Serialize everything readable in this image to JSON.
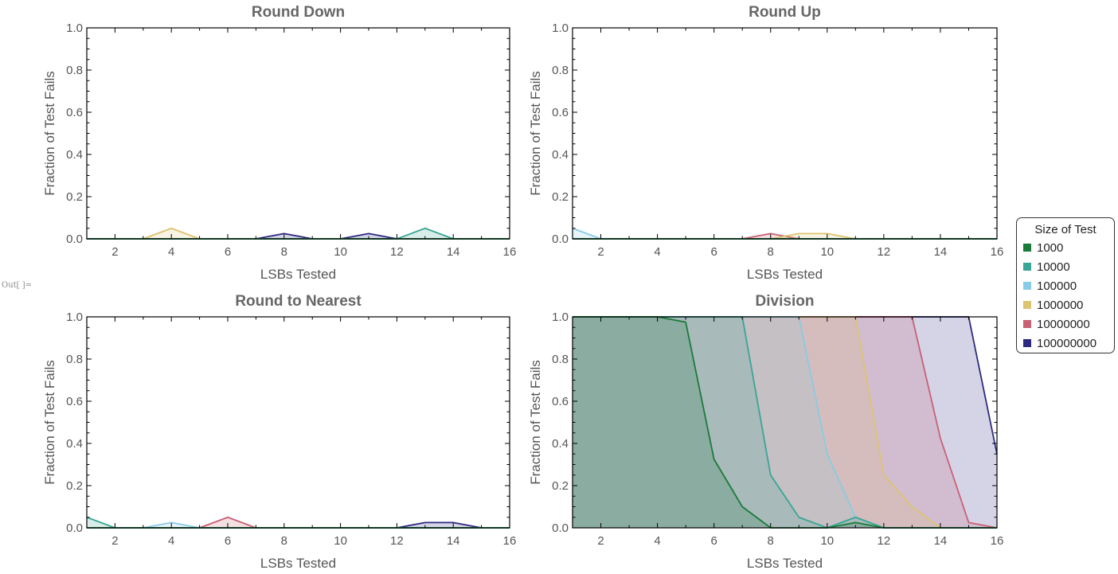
{
  "out_label": "Out[ ]=",
  "legend": {
    "title": "Size of Test",
    "items": [
      {
        "label": "1000",
        "color": "#1a7a3a"
      },
      {
        "label": "10000",
        "color": "#3aa594"
      },
      {
        "label": "100000",
        "color": "#89cbe6"
      },
      {
        "label": "1000000",
        "color": "#dcc472"
      },
      {
        "label": "10000000",
        "color": "#c86174"
      },
      {
        "label": "100000000",
        "color": "#2c2a80"
      }
    ]
  },
  "chart_data": [
    {
      "type": "area",
      "title": "Round Down",
      "xlabel": "LSBs Tested",
      "ylabel": "Fraction of Test Fails",
      "x": [
        1,
        2,
        3,
        4,
        5,
        6,
        7,
        8,
        9,
        10,
        11,
        12,
        13,
        14,
        15,
        16
      ],
      "xlim": [
        1,
        16
      ],
      "ylim": [
        0,
        1
      ],
      "xticks": [
        "2",
        "4",
        "6",
        "8",
        "10",
        "12",
        "14",
        "16"
      ],
      "yticks": [
        "0.0",
        "0.2",
        "0.4",
        "0.6",
        "0.8",
        "1.0"
      ],
      "series": [
        {
          "name": "1000",
          "values": [
            0,
            0,
            0,
            0,
            0,
            0,
            0,
            0,
            0,
            0,
            0,
            0,
            0,
            0,
            0,
            0
          ]
        },
        {
          "name": "10000",
          "values": [
            0,
            0,
            0,
            0,
            0,
            0,
            0,
            0,
            0,
            0,
            0,
            0,
            0.05,
            0,
            0,
            0
          ]
        },
        {
          "name": "100000",
          "values": [
            0,
            0,
            0,
            0,
            0,
            0,
            0,
            0,
            0,
            0,
            0,
            0,
            0,
            0,
            0,
            0
          ]
        },
        {
          "name": "1000000",
          "values": [
            0,
            0,
            0,
            0.05,
            0,
            0,
            0,
            0,
            0,
            0,
            0,
            0,
            0,
            0,
            0,
            0
          ]
        },
        {
          "name": "10000000",
          "values": [
            0,
            0,
            0,
            0,
            0,
            0,
            0,
            0,
            0,
            0,
            0,
            0,
            0,
            0,
            0,
            0
          ]
        },
        {
          "name": "100000000",
          "values": [
            0,
            0,
            0,
            0,
            0,
            0,
            0,
            0.025,
            0,
            0,
            0.025,
            0,
            0,
            0,
            0,
            0
          ]
        }
      ]
    },
    {
      "type": "area",
      "title": "Round Up",
      "xlabel": "LSBs Tested",
      "ylabel": "Fraction of Test Fails",
      "x": [
        1,
        2,
        3,
        4,
        5,
        6,
        7,
        8,
        9,
        10,
        11,
        12,
        13,
        14,
        15,
        16
      ],
      "xlim": [
        1,
        16
      ],
      "ylim": [
        0,
        1
      ],
      "xticks": [
        "2",
        "4",
        "6",
        "8",
        "10",
        "12",
        "14",
        "16"
      ],
      "yticks": [
        "0.0",
        "0.2",
        "0.4",
        "0.6",
        "0.8",
        "1.0"
      ],
      "series": [
        {
          "name": "1000",
          "values": [
            0,
            0,
            0,
            0,
            0,
            0,
            0,
            0,
            0,
            0,
            0,
            0,
            0,
            0,
            0,
            0
          ]
        },
        {
          "name": "10000",
          "values": [
            0,
            0,
            0,
            0,
            0,
            0,
            0,
            0,
            0,
            0,
            0,
            0,
            0,
            0,
            0,
            0
          ]
        },
        {
          "name": "100000",
          "values": [
            0.05,
            0,
            0,
            0,
            0,
            0,
            0,
            0,
            0,
            0,
            0,
            0,
            0,
            0,
            0,
            0
          ]
        },
        {
          "name": "1000000",
          "values": [
            0,
            0,
            0,
            0,
            0,
            0,
            0,
            0,
            0.025,
            0.025,
            0,
            0,
            0,
            0,
            0,
            0
          ]
        },
        {
          "name": "10000000",
          "values": [
            0,
            0,
            0,
            0,
            0,
            0,
            0,
            0.025,
            0,
            0,
            0,
            0,
            0,
            0,
            0,
            0
          ]
        },
        {
          "name": "100000000",
          "values": [
            0,
            0,
            0,
            0,
            0,
            0,
            0,
            0,
            0,
            0,
            0,
            0,
            0,
            0,
            0,
            0
          ]
        }
      ]
    },
    {
      "type": "area",
      "title": "Round to Nearest",
      "xlabel": "LSBs Tested",
      "ylabel": "Fraction of Test Fails",
      "x": [
        1,
        2,
        3,
        4,
        5,
        6,
        7,
        8,
        9,
        10,
        11,
        12,
        13,
        14,
        15,
        16
      ],
      "xlim": [
        1,
        16
      ],
      "ylim": [
        0,
        1
      ],
      "xticks": [
        "2",
        "4",
        "6",
        "8",
        "10",
        "12",
        "14",
        "16"
      ],
      "yticks": [
        "0.0",
        "0.2",
        "0.4",
        "0.6",
        "0.8",
        "1.0"
      ],
      "series": [
        {
          "name": "1000",
          "values": [
            0,
            0,
            0,
            0,
            0,
            0,
            0,
            0,
            0,
            0,
            0,
            0,
            0,
            0,
            0,
            0
          ]
        },
        {
          "name": "10000",
          "values": [
            0.05,
            0,
            0,
            0,
            0,
            0,
            0,
            0,
            0,
            0,
            0,
            0,
            0,
            0,
            0,
            0
          ]
        },
        {
          "name": "100000",
          "values": [
            0,
            0,
            0,
            0.025,
            0,
            0,
            0,
            0,
            0,
            0,
            0,
            0,
            0,
            0,
            0,
            0
          ]
        },
        {
          "name": "1000000",
          "values": [
            0,
            0,
            0,
            0,
            0,
            0,
            0,
            0,
            0,
            0,
            0,
            0,
            0,
            0,
            0,
            0
          ]
        },
        {
          "name": "10000000",
          "values": [
            0,
            0,
            0,
            0,
            0,
            0.05,
            0,
            0,
            0,
            0,
            0,
            0,
            0,
            0,
            0,
            0
          ]
        },
        {
          "name": "100000000",
          "values": [
            0,
            0,
            0,
            0,
            0,
            0,
            0,
            0,
            0,
            0,
            0,
            0,
            0.025,
            0.025,
            0,
            0
          ]
        }
      ]
    },
    {
      "type": "area",
      "title": "Division",
      "xlabel": "LSBs Tested",
      "ylabel": "Fraction of Test Fails",
      "x": [
        1,
        2,
        3,
        4,
        5,
        6,
        7,
        8,
        9,
        10,
        11,
        12,
        13,
        14,
        15,
        16
      ],
      "xlim": [
        1,
        16
      ],
      "ylim": [
        0,
        1
      ],
      "xticks": [
        "2",
        "4",
        "6",
        "8",
        "10",
        "12",
        "14",
        "16"
      ],
      "yticks": [
        "0.0",
        "0.2",
        "0.4",
        "0.6",
        "0.8",
        "1.0"
      ],
      "series": [
        {
          "name": "1000",
          "values": [
            1,
            1,
            1,
            1,
            0.975,
            0.325,
            0.1,
            0,
            0,
            0,
            0.025,
            0,
            0,
            0,
            0,
            0
          ]
        },
        {
          "name": "10000",
          "values": [
            1,
            1,
            1,
            1,
            1,
            1,
            1,
            0.25,
            0.05,
            0,
            0.05,
            0,
            0,
            0,
            0,
            0
          ]
        },
        {
          "name": "100000",
          "values": [
            1,
            1,
            1,
            1,
            1,
            1,
            1,
            1,
            1,
            0.35,
            0.05,
            0,
            0,
            0,
            0,
            0
          ]
        },
        {
          "name": "1000000",
          "values": [
            1,
            1,
            1,
            1,
            1,
            1,
            1,
            1,
            1,
            1,
            1,
            0.25,
            0.1,
            0,
            0,
            0
          ]
        },
        {
          "name": "10000000",
          "values": [
            1,
            1,
            1,
            1,
            1,
            1,
            1,
            1,
            1,
            1,
            1,
            1,
            1,
            0.425,
            0.025,
            0
          ]
        },
        {
          "name": "100000000",
          "values": [
            1,
            1,
            1,
            1,
            1,
            1,
            1,
            1,
            1,
            1,
            1,
            1,
            1,
            1,
            1,
            0.35
          ]
        }
      ]
    }
  ]
}
